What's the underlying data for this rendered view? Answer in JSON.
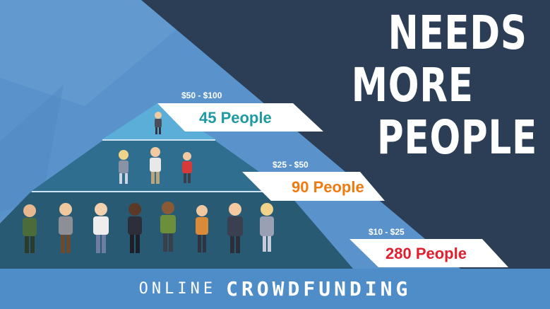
{
  "headline": {
    "line1": "NEEDS",
    "line2": "MORE",
    "line3": "PEOPLE"
  },
  "tiers": [
    {
      "price": "$50 - $100",
      "count": "45 People",
      "color": "#1e9aa0"
    },
    {
      "price": "$25 - $50",
      "count": "90 People",
      "color": "#ef7b10"
    },
    {
      "price": "$10 - $25",
      "count": "280 People",
      "color": "#e0202e"
    }
  ],
  "footer": {
    "online": "ONLINE",
    "crowdfunding": "CROWDFUNDING"
  },
  "colors": {
    "background_light": "#5a93cc",
    "background_dark": "#2c3e55",
    "pyramid_top": "#5aaed8",
    "pyramid_middle": "#2f6e8f",
    "pyramid_bottom": "#295a74",
    "footer_band": "#4f8dc8"
  }
}
